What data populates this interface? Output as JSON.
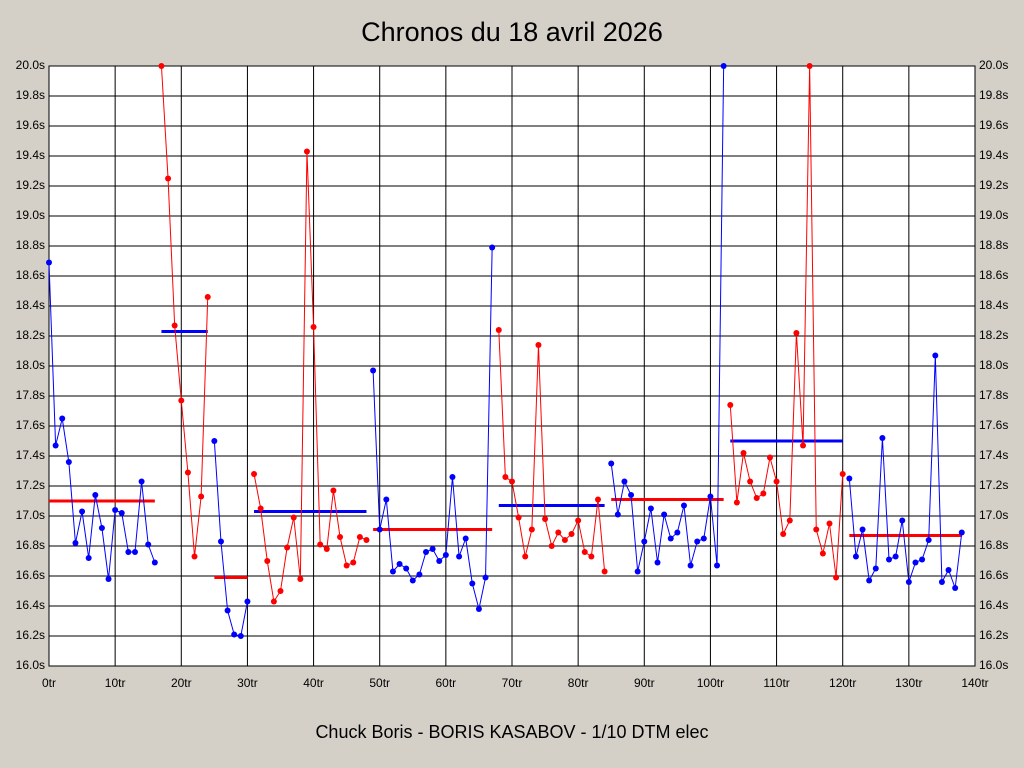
{
  "chart_data": {
    "type": "line",
    "title": "Chronos du 18 avril 2026",
    "footer": "Chuck Boris - BORIS KASABOV - 1/10 DTM elec",
    "xlim": [
      0,
      140
    ],
    "xticks": [
      {
        "value": 0,
        "label": "0tr"
      },
      {
        "value": 10,
        "label": "10tr"
      },
      {
        "value": 20,
        "label": "20tr"
      },
      {
        "value": 30,
        "label": "30tr"
      },
      {
        "value": 40,
        "label": "40tr"
      },
      {
        "value": 50,
        "label": "50tr"
      },
      {
        "value": 60,
        "label": "60tr"
      },
      {
        "value": 70,
        "label": "70tr"
      },
      {
        "value": 80,
        "label": "80tr"
      },
      {
        "value": 90,
        "label": "90tr"
      },
      {
        "value": 100,
        "label": "100tr"
      },
      {
        "value": 110,
        "label": "110tr"
      },
      {
        "value": 120,
        "label": "120tr"
      },
      {
        "value": 130,
        "label": "130tr"
      },
      {
        "value": 140,
        "label": "140tr"
      }
    ],
    "ylim": [
      16,
      20
    ],
    "yticks": [
      {
        "value": 16,
        "label": "16.0s"
      },
      {
        "value": 16.2,
        "label": "16.2s"
      },
      {
        "value": 16.4,
        "label": "16.4s"
      },
      {
        "value": 16.6,
        "label": "16.6s"
      },
      {
        "value": 16.8,
        "label": "16.8s"
      },
      {
        "value": 17,
        "label": "17.0s"
      },
      {
        "value": 17.2,
        "label": "17.2s"
      },
      {
        "value": 17.4,
        "label": "17.4s"
      },
      {
        "value": 17.6,
        "label": "17.6s"
      },
      {
        "value": 17.8,
        "label": "17.8s"
      },
      {
        "value": 18,
        "label": "18.0s"
      },
      {
        "value": 18.2,
        "label": "18.2s"
      },
      {
        "value": 18.4,
        "label": "18.4s"
      },
      {
        "value": 18.6,
        "label": "18.6s"
      },
      {
        "value": 18.8,
        "label": "18.8s"
      },
      {
        "value": 19,
        "label": "19.0s"
      },
      {
        "value": 19.2,
        "label": "19.2s"
      },
      {
        "value": 19.4,
        "label": "19.4s"
      },
      {
        "value": 19.6,
        "label": "19.6s"
      },
      {
        "value": 19.8,
        "label": "19.8s"
      },
      {
        "value": 20,
        "label": "20.0s"
      }
    ],
    "grid": true,
    "series": [
      {
        "color": "#0000ff",
        "mean_color": "#ff0000",
        "mean": 17.1,
        "x": [
          0,
          1,
          2,
          3,
          4,
          5,
          6,
          7,
          8,
          9,
          10,
          11,
          12,
          13,
          14,
          15,
          16
        ],
        "values": [
          18.69,
          17.47,
          17.65,
          17.36,
          16.82,
          17.03,
          16.72,
          17.14,
          16.92,
          16.58,
          17.04,
          17.02,
          16.76,
          16.76,
          17.23,
          16.81,
          16.69
        ]
      },
      {
        "color": "#ff0000",
        "mean_color": "#0000ff",
        "mean": 18.23,
        "x": [
          17,
          18,
          19,
          20,
          21,
          22,
          23,
          24
        ],
        "values": [
          20.0,
          19.25,
          18.27,
          17.77,
          17.29,
          16.73,
          17.13,
          18.46
        ]
      },
      {
        "color": "#0000ff",
        "mean_color": "#ff0000",
        "mean": 16.59,
        "x": [
          25,
          26,
          27,
          28,
          29,
          30
        ],
        "values": [
          17.5,
          16.83,
          16.37,
          16.21,
          16.2,
          16.43
        ]
      },
      {
        "color": "#ff0000",
        "mean_color": "#0000ff",
        "mean": 17.03,
        "x": [
          31,
          32,
          33,
          34,
          35,
          36,
          37,
          38,
          39,
          40,
          41,
          42,
          43,
          44,
          45,
          46,
          47,
          48
        ],
        "values": [
          17.28,
          17.05,
          16.7,
          16.43,
          16.5,
          16.79,
          16.99,
          16.58,
          19.43,
          18.26,
          16.81,
          16.78,
          17.17,
          16.86,
          16.67,
          16.69,
          16.86,
          16.84
        ]
      },
      {
        "color": "#0000ff",
        "mean_color": "#ff0000",
        "mean": 16.91,
        "x": [
          49,
          50,
          51,
          52,
          53,
          54,
          55,
          56,
          57,
          58,
          59,
          60,
          61,
          62,
          63,
          64,
          65,
          66,
          67
        ],
        "values": [
          17.97,
          16.91,
          17.11,
          16.63,
          16.68,
          16.65,
          16.57,
          16.61,
          16.76,
          16.78,
          16.7,
          16.74,
          17.26,
          16.73,
          16.85,
          16.55,
          16.38,
          16.59,
          18.79
        ]
      },
      {
        "color": "#ff0000",
        "mean_color": "#0000ff",
        "mean": 17.07,
        "x": [
          68,
          69,
          70,
          71,
          72,
          73,
          74,
          75,
          76,
          77,
          78,
          79,
          80,
          81,
          82,
          83,
          84
        ],
        "values": [
          18.24,
          17.26,
          17.23,
          16.99,
          16.73,
          16.91,
          18.14,
          16.98,
          16.8,
          16.89,
          16.84,
          16.88,
          16.97,
          16.76,
          16.73,
          17.11,
          16.63
        ]
      },
      {
        "color": "#0000ff",
        "mean_color": "#ff0000",
        "mean": 17.11,
        "x": [
          85,
          86,
          87,
          88,
          89,
          90,
          91,
          92,
          93,
          94,
          95,
          96,
          97,
          98,
          99,
          100,
          101,
          102
        ],
        "values": [
          17.35,
          17.01,
          17.23,
          17.14,
          16.63,
          16.83,
          17.05,
          16.69,
          17.01,
          16.85,
          16.89,
          17.07,
          16.67,
          16.83,
          16.85,
          17.13,
          16.67,
          20.0
        ]
      },
      {
        "color": "#ff0000",
        "mean_color": "#0000ff",
        "mean": 17.5,
        "x": [
          103,
          104,
          105,
          106,
          107,
          108,
          109,
          110,
          111,
          112,
          113,
          114,
          115,
          116,
          117,
          118,
          119,
          120
        ],
        "values": [
          17.74,
          17.09,
          17.42,
          17.23,
          17.12,
          17.15,
          17.39,
          17.23,
          16.88,
          16.97,
          18.22,
          17.47,
          20.0,
          16.91,
          16.75,
          16.95,
          16.59,
          17.28
        ]
      },
      {
        "color": "#0000ff",
        "mean_color": "#ff0000",
        "mean": 16.87,
        "x": [
          121,
          122,
          123,
          124,
          125,
          126,
          127,
          128,
          129,
          130,
          131,
          132,
          133,
          134,
          135,
          136,
          137,
          138
        ],
        "values": [
          17.25,
          16.73,
          16.91,
          16.57,
          16.65,
          17.52,
          16.71,
          16.73,
          16.97,
          16.56,
          16.69,
          16.71,
          16.84,
          18.07,
          16.56,
          16.64,
          16.52,
          16.89
        ]
      }
    ]
  }
}
